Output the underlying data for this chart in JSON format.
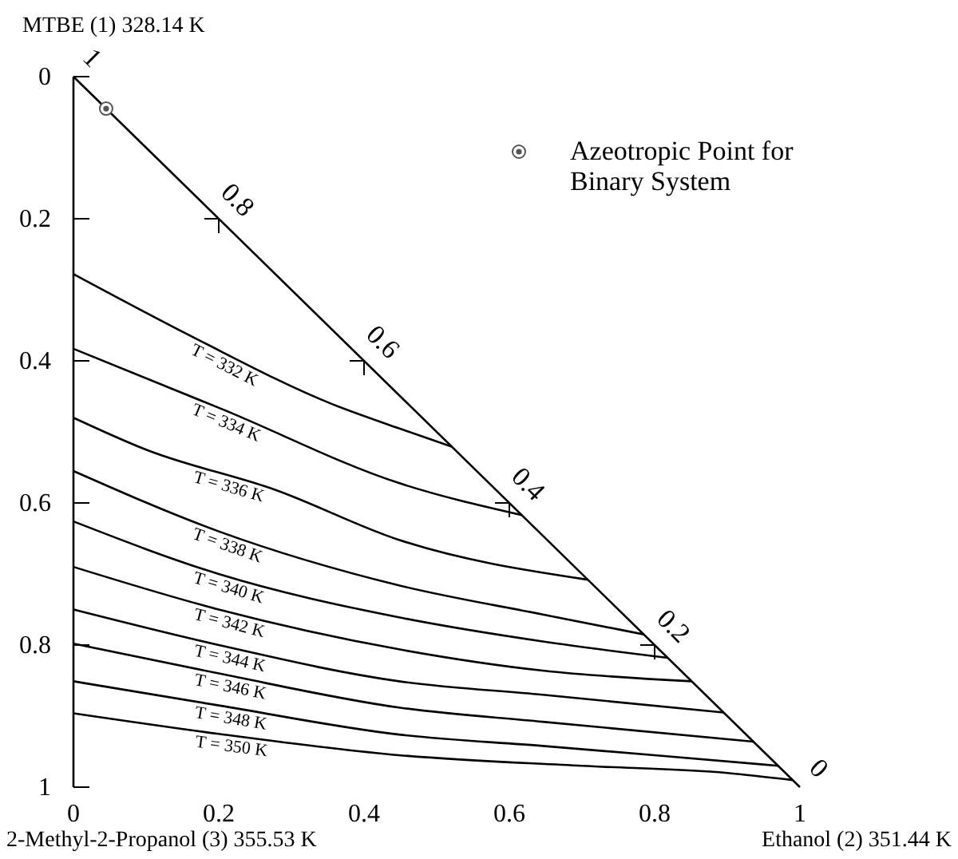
{
  "chart_data": {
    "type": "line",
    "xlabel": "Ethanol (2) 351.44 K",
    "ylabel": "MTBE (1) 328.14 K",
    "xlim": [
      0,
      1
    ],
    "ylim": [
      1,
      0
    ],
    "xticks": [
      0,
      0.2,
      0.4,
      0.6,
      0.8,
      1
    ],
    "yticks": [
      0,
      0.2,
      0.4,
      0.6,
      0.8,
      1
    ],
    "grid": false,
    "legend": "top right",
    "marker": "none",
    "line_style": "solid",
    "series": [
      {
        "x": [
          0,
          1
        ],
        "values": [
          0,
          1
        ],
        "color": "#000000"
      },
      {
        "name": "T = 332 K",
        "x": [
          0,
          0.169,
          0.354,
          0.448,
          0.521
        ],
        "values": [
          0.278,
          0.369,
          0.46,
          0.495,
          0.521
        ],
        "color": "#000000"
      },
      {
        "name": "T = 334 K",
        "x": [
          0,
          0.207,
          0.448,
          0.617
        ],
        "values": [
          0.383,
          0.469,
          0.572,
          0.617
        ],
        "color": "#000000"
      },
      {
        "name": "T = 336 K",
        "x": [
          0,
          0.1,
          0.279,
          0.448,
          0.708
        ],
        "values": [
          0.48,
          0.525,
          0.582,
          0.652,
          0.708
        ],
        "color": "#000000"
      },
      {
        "name": "T = 338 K",
        "x": [
          0,
          0.2,
          0.448,
          0.646,
          0.785
        ],
        "values": [
          0.555,
          0.64,
          0.716,
          0.757,
          0.785
        ],
        "color": "#000000"
      },
      {
        "name": "T = 340 K",
        "x": [
          0,
          0.2,
          0.448,
          0.646,
          0.818
        ],
        "values": [
          0.626,
          0.7,
          0.761,
          0.795,
          0.818
        ],
        "color": "#000000"
      },
      {
        "name": "T = 342 K",
        "x": [
          0,
          0.2,
          0.448,
          0.646,
          0.851
        ],
        "values": [
          0.69,
          0.75,
          0.806,
          0.836,
          0.851
        ],
        "color": "#000000"
      },
      {
        "name": "T = 344 K",
        "x": [
          0,
          0.2,
          0.448,
          0.646,
          0.895
        ],
        "values": [
          0.75,
          0.8,
          0.851,
          0.87,
          0.895
        ],
        "color": "#000000"
      },
      {
        "name": "T = 346 K",
        "x": [
          0,
          0.2,
          0.448,
          0.646,
          0.936
        ],
        "values": [
          0.798,
          0.84,
          0.888,
          0.908,
          0.936
        ],
        "color": "#000000"
      },
      {
        "name": "T = 348 K",
        "x": [
          0,
          0.2,
          0.448,
          0.646,
          0.8,
          0.97
        ],
        "values": [
          0.851,
          0.885,
          0.926,
          0.942,
          0.955,
          0.97
        ],
        "color": "#000000"
      },
      {
        "name": "T = 350 K",
        "x": [
          0,
          0.2,
          0.448,
          0.7,
          0.9,
          0.99
        ],
        "values": [
          0.896,
          0.925,
          0.955,
          0.97,
          0.98,
          0.99
        ],
        "color": "#000000"
      },
      {
        "type": "scatter",
        "name": "Azeotropic Point for Binary System",
        "x": [
          0.045
        ],
        "values": [
          0.045
        ],
        "color": "#555555",
        "marker": "circle"
      }
    ],
    "annotations": [
      {
        "text": "1",
        "x": 0,
        "y": 0
      },
      {
        "text": "0.8",
        "x": 0.2,
        "y": 0.2
      },
      {
        "text": "0.6",
        "x": 0.4,
        "y": 0.4
      },
      {
        "text": "0.4",
        "x": 0.6,
        "y": 0.6
      },
      {
        "text": "0.2",
        "x": 0.8,
        "y": 0.8
      },
      {
        "text": "0",
        "x": 1,
        "y": 1
      },
      "2-Methyl-2-Propanol (3) 355.53 K"
    ]
  }
}
